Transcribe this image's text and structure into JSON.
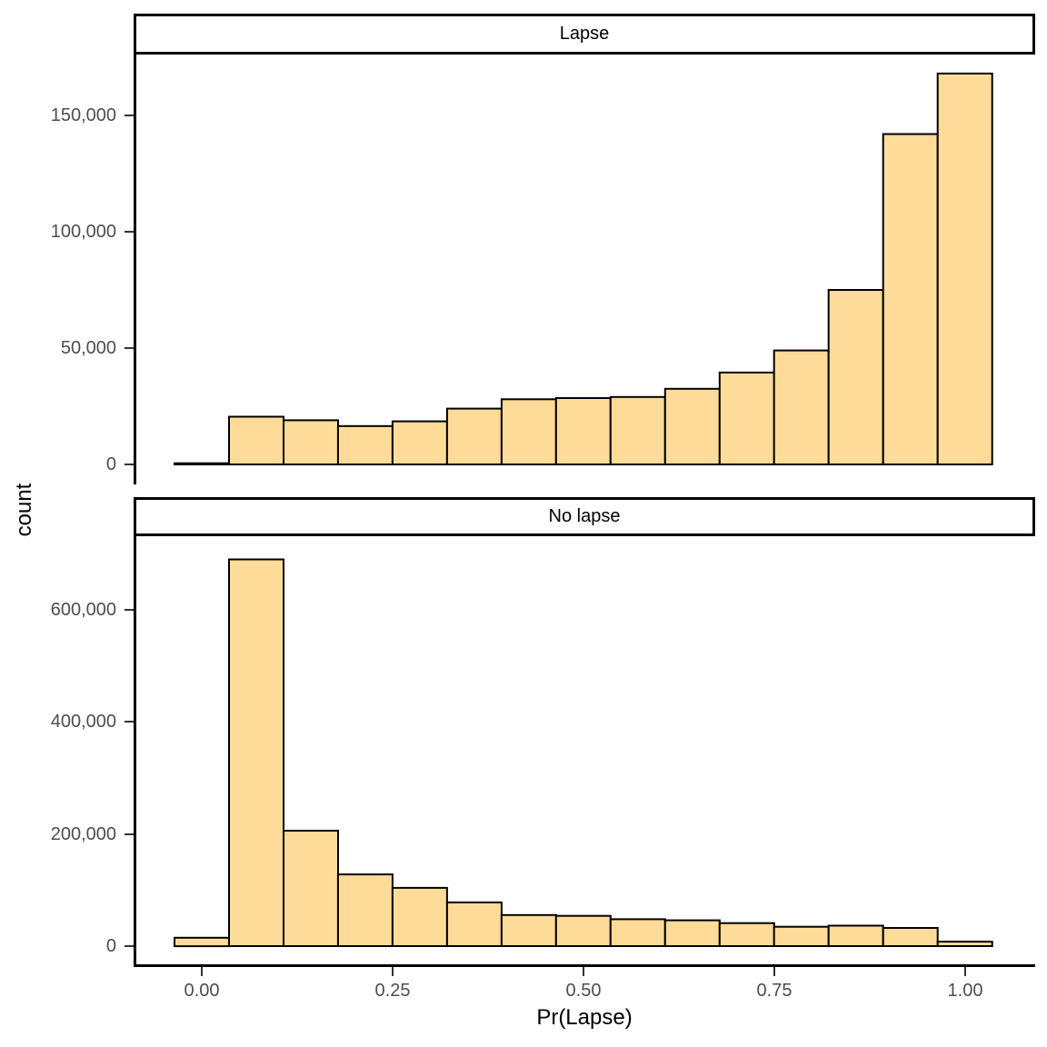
{
  "figure": {
    "background": "#ffffff"
  },
  "chart_data": {
    "type": "bar",
    "subtype": "faceted_histogram",
    "title": "",
    "xlabel": "Pr(Lapse)",
    "ylabel": "count",
    "xlim": [
      -0.089,
      1.091
    ],
    "grid": "off",
    "legend": "none",
    "xticks": [
      {
        "value": 0.0,
        "label": "0.00"
      },
      {
        "value": 0.25,
        "label": "0.25"
      },
      {
        "value": 0.5,
        "label": "0.50"
      },
      {
        "value": 0.75,
        "label": "0.75"
      },
      {
        "value": 1.0,
        "label": "1.00"
      }
    ],
    "bins": {
      "start": -0.0357,
      "width": 0.0714,
      "count": 15
    },
    "bin_centers": [
      0.0,
      0.0714,
      0.1429,
      0.2143,
      0.2857,
      0.3571,
      0.4286,
      0.5,
      0.5714,
      0.6429,
      0.7143,
      0.7857,
      0.8571,
      0.9286,
      1.0
    ],
    "facets": [
      {
        "label": "Lapse",
        "ylim": [
          0,
          176000
        ],
        "yticks": [
          {
            "value": 0,
            "label": "0"
          },
          {
            "value": 50000,
            "label": "50,000"
          },
          {
            "value": 100000,
            "label": "100,000"
          },
          {
            "value": 150000,
            "label": "150,000"
          }
        ],
        "values": [
          500,
          20500,
          19000,
          16500,
          18500,
          24000,
          28000,
          28500,
          29000,
          32500,
          39500,
          49000,
          75000,
          142000,
          168000
        ]
      },
      {
        "label": "No lapse",
        "ylim": [
          0,
          731000
        ],
        "yticks": [
          {
            "value": 0,
            "label": "0"
          },
          {
            "value": 200000,
            "label": "200,000"
          },
          {
            "value": 400000,
            "label": "400,000"
          },
          {
            "value": 600000,
            "label": "600,000"
          }
        ],
        "values": [
          15000,
          690000,
          206000,
          128000,
          104000,
          78000,
          55500,
          54000,
          48000,
          46000,
          41000,
          34500,
          36500,
          32500,
          8000
        ]
      }
    ],
    "style": {
      "bar_fill": "#FFDB99",
      "bar_stroke": "#000000",
      "axis_line_color": "#000000",
      "tick_label_color": "#4d4d4d",
      "title_color": "#000000",
      "strip_border_color": "#000000",
      "strip_background": "#ffffff"
    }
  }
}
